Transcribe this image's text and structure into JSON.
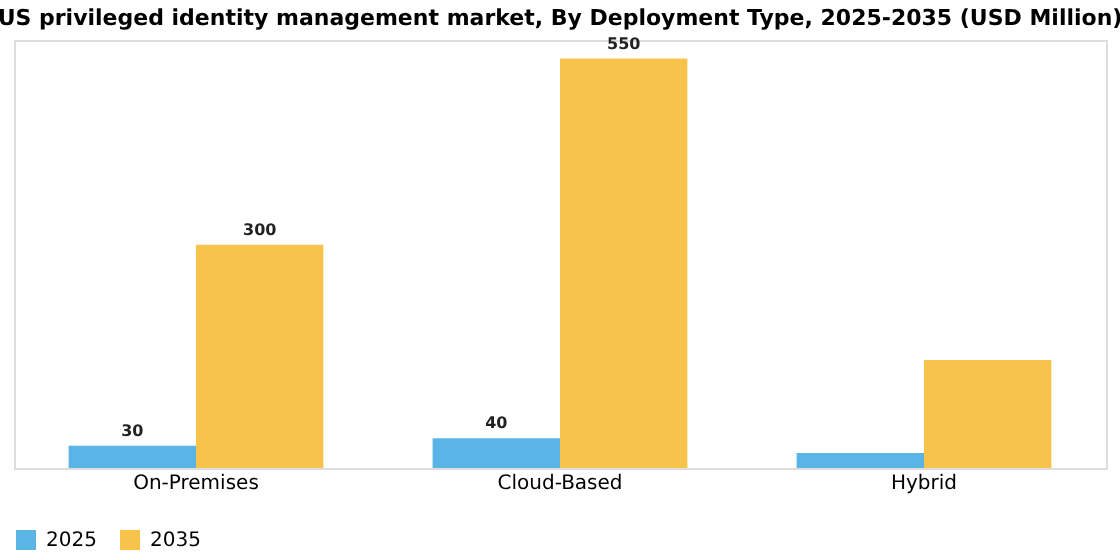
{
  "chart_data": {
    "type": "bar",
    "title": "US privileged identity management market, By Deployment Type, 2025-2035 (USD Million)",
    "categories": [
      "On-Premises",
      "Cloud-Based",
      "Hybrid"
    ],
    "series": [
      {
        "name": "2025",
        "color": "#5ab4e5",
        "values": [
          30,
          40,
          20
        ],
        "value_labels": [
          "30",
          "40",
          null
        ]
      },
      {
        "name": "2035",
        "color": "#f7c34b",
        "values": [
          300,
          550,
          145
        ],
        "value_labels": [
          "300",
          "550",
          null
        ]
      }
    ],
    "ylim": [
      0,
      575
    ],
    "tick_labels": "x",
    "grid": false,
    "legend": "bottom"
  }
}
